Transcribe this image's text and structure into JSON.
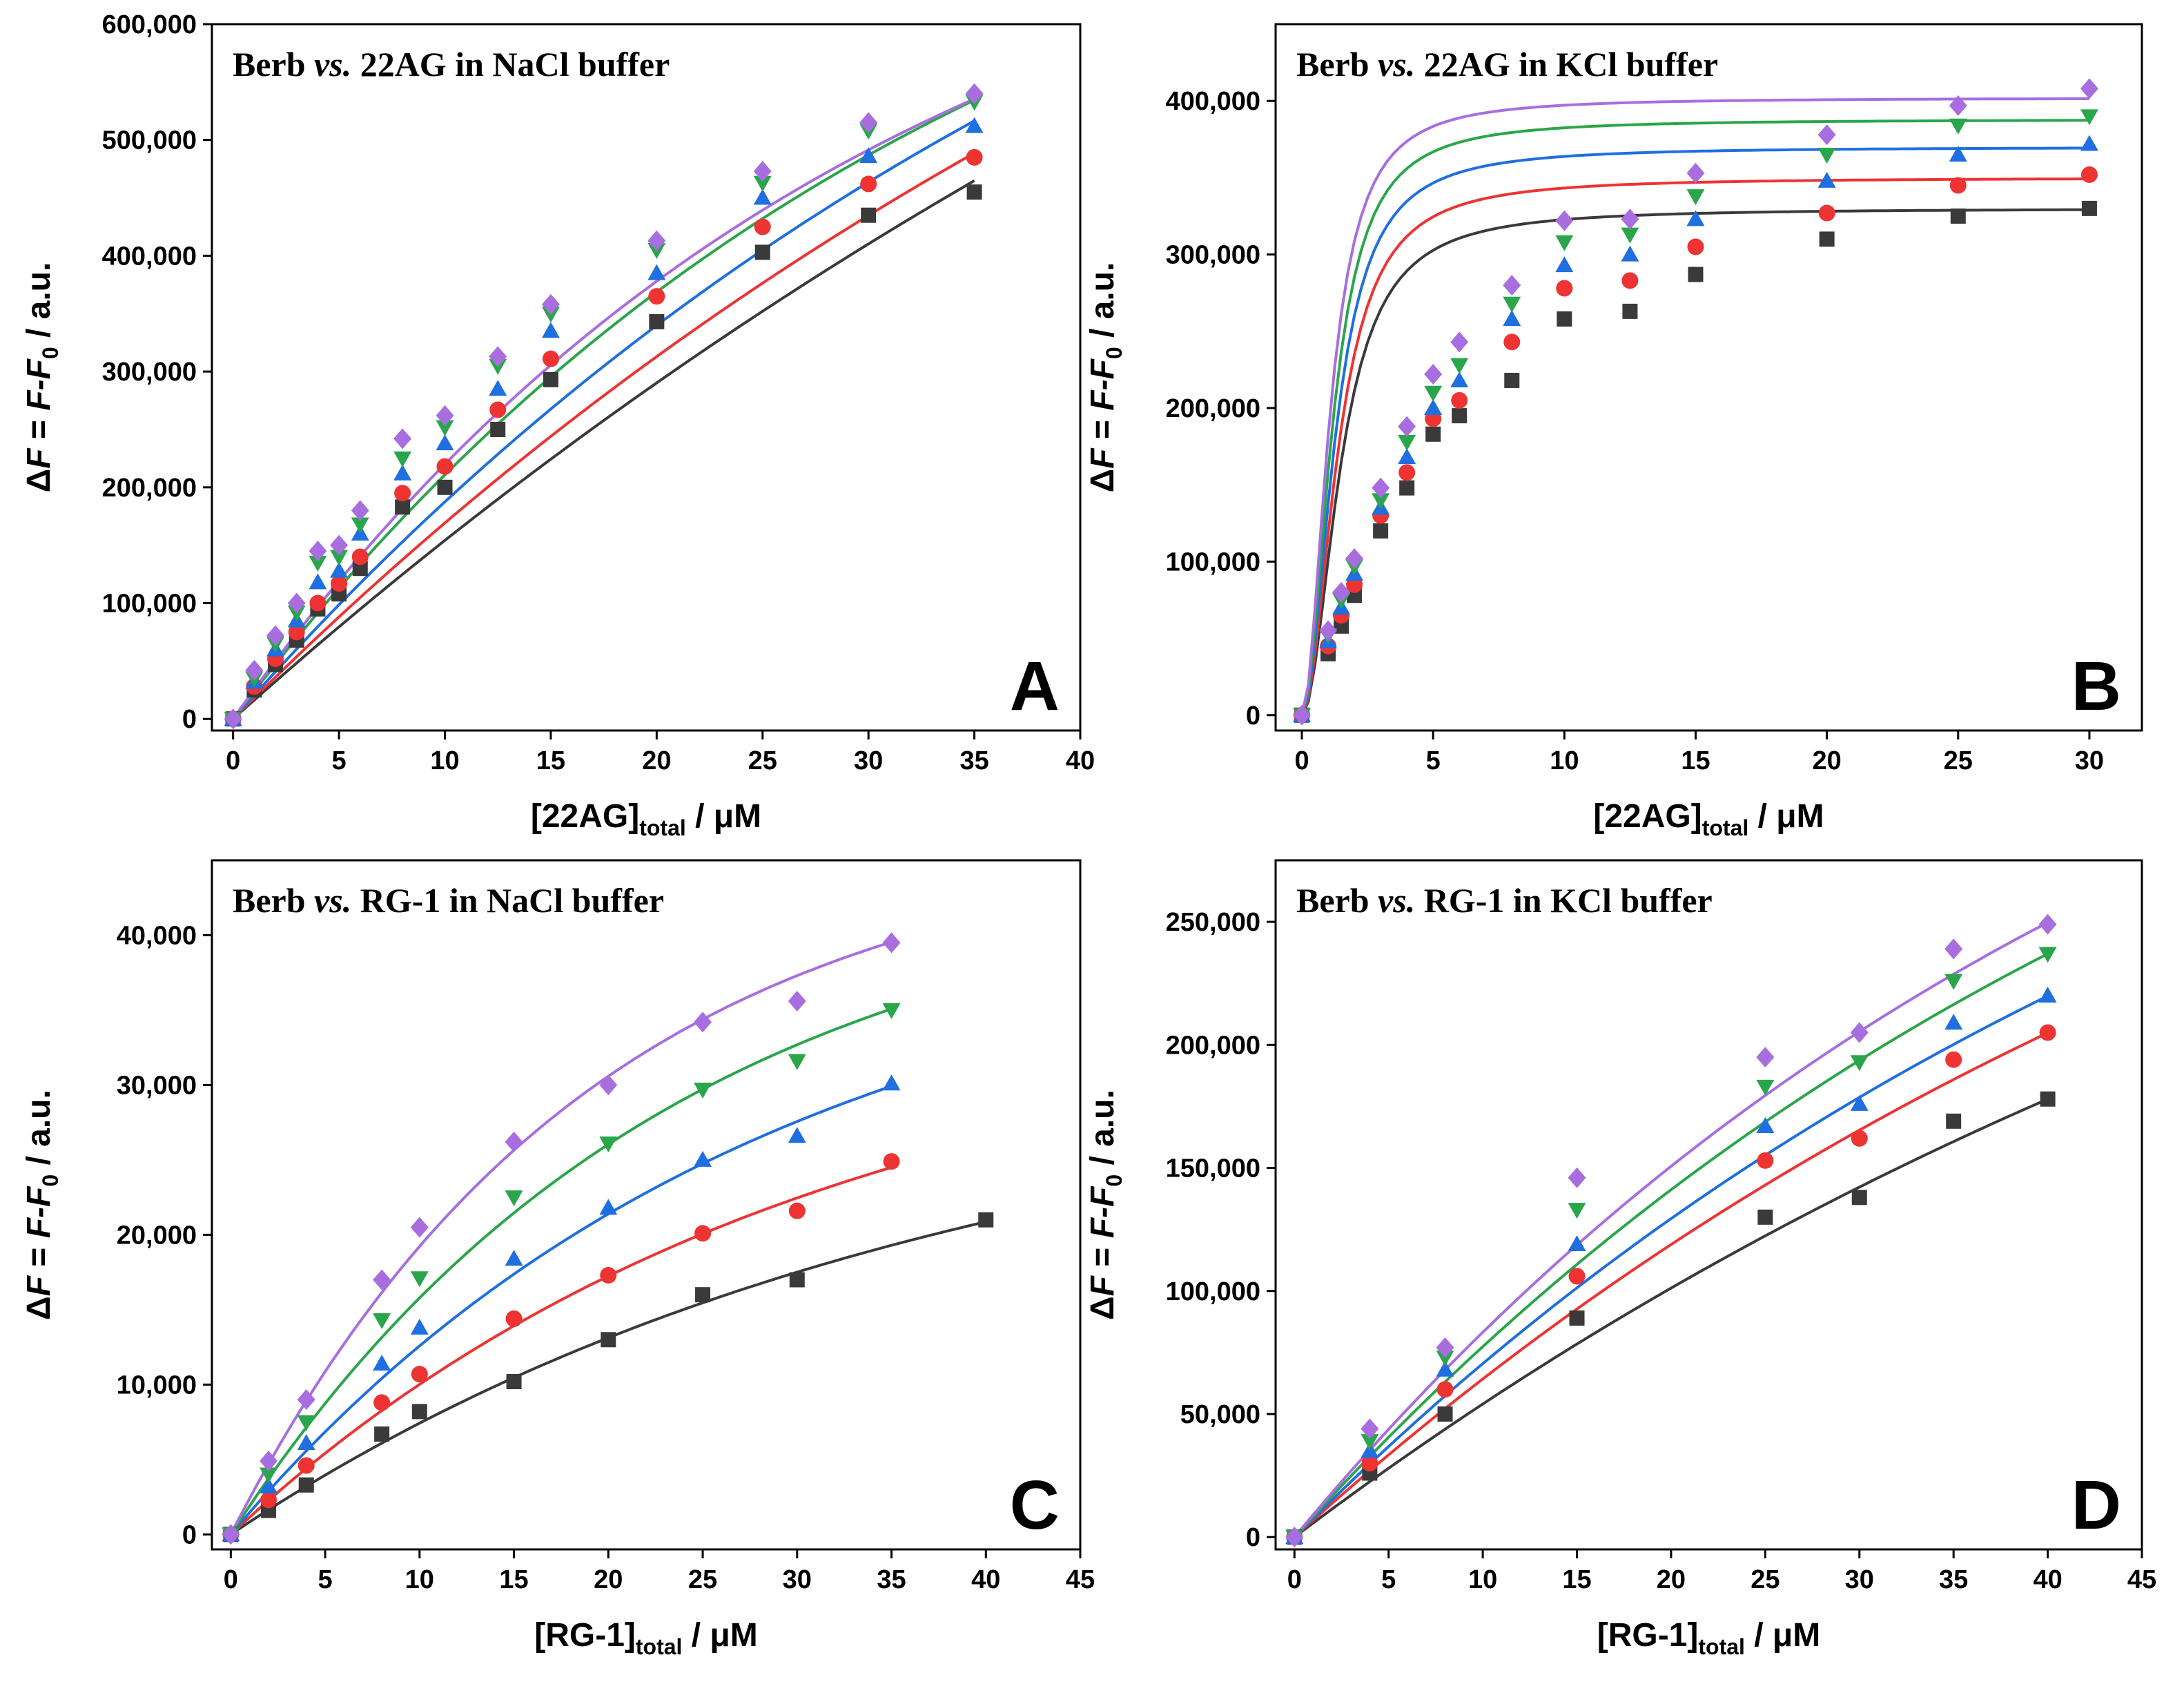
{
  "series_colors": [
    "#3a3a3a",
    "#ee3333",
    "#1f6fe0",
    "#2aa64a",
    "#a86ee0"
  ],
  "marker_shapes": [
    "square",
    "circle",
    "triangle-up",
    "triangle-down",
    "diamond"
  ],
  "chart_data": [
    {
      "type": "scatter",
      "panel": "A",
      "title_prefix": "Berb ",
      "title_italic": "vs.",
      "title_suffix": " 22AG in NaCl buffer",
      "xlabel_main": "[22AG]",
      "xlabel_sub": "total",
      "xlabel_unit": " / μM",
      "ylabel": "ΔF = F-F0 / a.u.",
      "xlim": [
        -1,
        40
      ],
      "ylim": [
        -10000,
        600000
      ],
      "xticks": [
        0,
        5,
        10,
        15,
        20,
        25,
        30,
        35,
        40
      ],
      "yticks": [
        0,
        100000,
        200000,
        300000,
        400000,
        500000,
        600000
      ],
      "ytick_labels": [
        "0",
        "100,000",
        "200,000",
        "300,000",
        "400,000",
        "500,000",
        "600,000"
      ],
      "series": [
        {
          "x": [
            0,
            1,
            2,
            3,
            4,
            5,
            6,
            8,
            10,
            12.5,
            15,
            20,
            25,
            30,
            35
          ],
          "values": [
            0,
            25000,
            47000,
            68000,
            95000,
            108000,
            130000,
            183000,
            200000,
            250000,
            293000,
            343000,
            403000,
            435000,
            455000
          ],
          "fit": {
            "model": "sat",
            "a": 1310000,
            "b": 0.01252
          }
        },
        {
          "x": [
            0,
            1,
            2,
            3,
            4,
            5,
            6,
            8,
            10,
            12.5,
            15,
            20,
            25,
            30,
            35
          ],
          "values": [
            0,
            28000,
            52000,
            75000,
            100000,
            117000,
            140000,
            195000,
            218000,
            267000,
            311000,
            365000,
            425000,
            462000,
            485000
          ],
          "fit": {
            "model": "sat",
            "a": 1120000,
            "b": 0.01638
          }
        },
        {
          "x": [
            0,
            1,
            2,
            3,
            4,
            5,
            6,
            8,
            10,
            12.5,
            15,
            20,
            25,
            30,
            35
          ],
          "values": [
            0,
            32000,
            60000,
            85000,
            118000,
            128000,
            160000,
            212000,
            238000,
            285000,
            335000,
            385000,
            450000,
            486000,
            512000
          ],
          "fit": {
            "model": "sat",
            "a": 1000000,
            "b": 0.02076
          }
        },
        {
          "x": [
            0,
            1,
            2,
            3,
            4,
            5,
            6,
            8,
            10,
            12.5,
            15,
            20,
            25,
            30,
            35
          ],
          "values": [
            0,
            35000,
            65000,
            92000,
            135000,
            140000,
            168000,
            225000,
            252000,
            305000,
            350000,
            405000,
            463000,
            508000,
            533000
          ],
          "fit": {
            "model": "sat",
            "a": 840000,
            "b": 0.02889
          }
        },
        {
          "x": [
            0,
            1,
            2,
            3,
            4,
            5,
            6,
            8,
            10,
            12.5,
            15,
            20,
            25,
            30,
            35
          ],
          "values": [
            0,
            42000,
            72000,
            100000,
            145000,
            150000,
            180000,
            242000,
            262000,
            313000,
            358000,
            413000,
            473000,
            515000,
            540000
          ],
          "fit": {
            "model": "sat",
            "a": 780000,
            "b": 0.03314
          }
        }
      ]
    },
    {
      "type": "scatter",
      "panel": "B",
      "title_prefix": "Berb ",
      "title_italic": "vs.",
      "title_suffix": " 22AG in KCl buffer",
      "xlabel_main": "[22AG]",
      "xlabel_sub": "total",
      "xlabel_unit": " / μM",
      "ylabel": "ΔF = F-F0 / a.u.",
      "xlim": [
        -1,
        32
      ],
      "ylim": [
        -10000,
        450000
      ],
      "xticks": [
        0,
        5,
        10,
        15,
        20,
        25,
        30
      ],
      "yticks": [
        0,
        100000,
        200000,
        300000,
        400000
      ],
      "ytick_labels": [
        "0",
        "100,000",
        "200,000",
        "300,000",
        "400,000"
      ],
      "series": [
        {
          "x": [
            0,
            1,
            1.5,
            2,
            3,
            4,
            5,
            6,
            8,
            10,
            12.5,
            15,
            20,
            25,
            30
          ],
          "values": [
            0,
            40000,
            58000,
            78000,
            120000,
            148000,
            183000,
            195000,
            218000,
            258000,
            263000,
            287000,
            310000,
            325000,
            330000
          ],
          "fit": {
            "model": "quad",
            "A": 330000,
            "k": 1.5
          }
        },
        {
          "x": [
            0,
            1,
            1.5,
            2,
            3,
            4,
            5,
            6,
            8,
            10,
            12.5,
            15,
            20,
            25,
            30
          ],
          "values": [
            0,
            45000,
            65000,
            85000,
            130000,
            158000,
            193000,
            205000,
            243000,
            278000,
            283000,
            305000,
            327000,
            345000,
            352000
          ],
          "fit": {
            "model": "quad",
            "A": 350000,
            "k": 1.4
          }
        },
        {
          "x": [
            0,
            1,
            1.5,
            2,
            3,
            4,
            5,
            6,
            8,
            10,
            12.5,
            15,
            20,
            25,
            30
          ],
          "values": [
            0,
            48000,
            70000,
            92000,
            135000,
            168000,
            200000,
            218000,
            258000,
            293000,
            300000,
            323000,
            348000,
            365000,
            372000
          ],
          "fit": {
            "model": "quad",
            "A": 370000,
            "k": 1.3
          }
        },
        {
          "x": [
            0,
            1,
            1.5,
            2,
            3,
            4,
            5,
            6,
            8,
            10,
            12.5,
            15,
            20,
            25,
            30
          ],
          "values": [
            0,
            52000,
            75000,
            97000,
            140000,
            178000,
            210000,
            228000,
            268000,
            308000,
            313000,
            338000,
            365000,
            384000,
            390000
          ],
          "fit": {
            "model": "quad",
            "A": 388000,
            "k": 1.2
          }
        },
        {
          "x": [
            0,
            1,
            1.5,
            2,
            3,
            4,
            5,
            6,
            8,
            10,
            12.5,
            15,
            20,
            25,
            30
          ],
          "values": [
            0,
            55000,
            80000,
            102000,
            148000,
            188000,
            222000,
            243000,
            280000,
            322000,
            323000,
            353000,
            378000,
            397000,
            408000
          ],
          "fit": {
            "model": "quad",
            "A": 402000,
            "k": 1.1
          }
        }
      ]
    },
    {
      "type": "scatter",
      "panel": "C",
      "title_prefix": "Berb ",
      "title_italic": "vs.",
      "title_suffix": " RG-1 in NaCl buffer",
      "xlabel_main": "[RG-1]",
      "xlabel_sub": "total",
      "xlabel_unit": " / μM",
      "ylabel": "ΔF = F-F0 / a.u.",
      "xlim": [
        -1,
        45
      ],
      "ylim": [
        -1000,
        45000
      ],
      "xticks": [
        0,
        5,
        10,
        15,
        20,
        25,
        30,
        35,
        40,
        45
      ],
      "yticks": [
        0,
        10000,
        20000,
        30000,
        40000
      ],
      "ytick_labels": [
        "0",
        "10,000",
        "20,000",
        "30,000",
        "40,000"
      ],
      "series": [
        {
          "x": [
            0,
            2,
            4,
            8,
            10,
            15,
            20,
            25,
            30,
            40
          ],
          "values": [
            0,
            1600,
            3300,
            6700,
            8200,
            10200,
            13000,
            16000,
            17000,
            21000
          ],
          "fit": {
            "model": "sat",
            "a": 32000,
            "b": 0.0264
          }
        },
        {
          "x": [
            0,
            2,
            4,
            8,
            10,
            15,
            20,
            25,
            30,
            35
          ],
          "values": [
            0,
            2300,
            4600,
            8800,
            10700,
            14400,
            17300,
            20100,
            21600,
            24900
          ],
          "fit": {
            "model": "sat",
            "a": 36000,
            "b": 0.0326
          }
        },
        {
          "x": [
            0,
            2,
            4,
            8,
            10,
            15,
            20,
            25,
            30,
            35
          ],
          "values": [
            0,
            3200,
            6100,
            11400,
            13800,
            18400,
            21800,
            25000,
            26600,
            30100
          ],
          "fit": {
            "model": "sat",
            "a": 42000,
            "b": 0.0356
          }
        },
        {
          "x": [
            0,
            2,
            4,
            8,
            10,
            15,
            20,
            25,
            30,
            35
          ],
          "values": [
            0,
            4000,
            7500,
            14300,
            17100,
            22500,
            26100,
            29700,
            31600,
            35000
          ],
          "fit": {
            "model": "sat",
            "a": 45000,
            "b": 0.0432
          }
        },
        {
          "x": [
            0,
            2,
            4,
            8,
            10,
            15,
            20,
            25,
            30,
            35
          ],
          "values": [
            0,
            4900,
            9000,
            17000,
            20500,
            26200,
            30000,
            34200,
            35600,
            39500
          ],
          "fit": {
            "model": "sat",
            "a": 47000,
            "b": 0.0526
          }
        }
      ]
    },
    {
      "type": "scatter",
      "panel": "D",
      "title_prefix": "Berb ",
      "title_italic": "vs.",
      "title_suffix": " RG-1 in KCl buffer",
      "xlabel_main": "[RG-1]",
      "xlabel_sub": "total",
      "xlabel_unit": " / μM",
      "ylabel": "ΔF = F-F0 / a.u.",
      "xlim": [
        -1,
        45
      ],
      "ylim": [
        -5000,
        275000
      ],
      "xticks": [
        0,
        5,
        10,
        15,
        20,
        25,
        30,
        35,
        40,
        45
      ],
      "yticks": [
        0,
        50000,
        100000,
        150000,
        200000,
        250000
      ],
      "ytick_labels": [
        "0",
        "50,000",
        "100,000",
        "150,000",
        "200,000",
        "250,000"
      ],
      "series": [
        {
          "x": [
            0,
            4,
            8,
            15,
            25,
            30,
            35,
            40
          ],
          "values": [
            0,
            26000,
            50000,
            89000,
            130000,
            138000,
            169000,
            178000
          ],
          "fit": {
            "model": "sat",
            "a": 420000,
            "b": 0.01378
          }
        },
        {
          "x": [
            0,
            4,
            8,
            15,
            25,
            30,
            35,
            40
          ],
          "values": [
            0,
            30000,
            60000,
            106000,
            153000,
            162000,
            194000,
            205000
          ],
          "fit": {
            "model": "sat",
            "a": 430000,
            "b": 0.01618
          }
        },
        {
          "x": [
            0,
            4,
            8,
            15,
            25,
            30,
            35,
            40
          ],
          "values": [
            0,
            35000,
            68000,
            119000,
            167000,
            176000,
            209000,
            220000
          ],
          "fit": {
            "model": "sat",
            "a": 430000,
            "b": 0.0179
          }
        },
        {
          "x": [
            0,
            4,
            8,
            15,
            25,
            30,
            35,
            40
          ],
          "values": [
            0,
            39000,
            73000,
            133000,
            183000,
            193000,
            226000,
            237000
          ],
          "fit": {
            "model": "sat",
            "a": 440000,
            "b": 0.01934
          }
        },
        {
          "x": [
            0,
            4,
            8,
            15,
            25,
            30,
            35,
            40
          ],
          "values": [
            0,
            44000,
            77000,
            146000,
            195000,
            205000,
            239000,
            249000
          ],
          "fit": {
            "model": "sat",
            "a": 440000,
            "b": 0.02096
          }
        }
      ]
    }
  ]
}
